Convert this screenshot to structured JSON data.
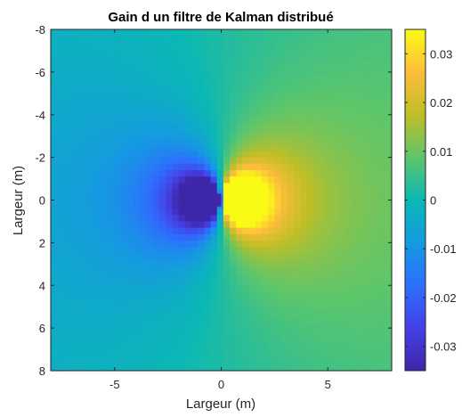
{
  "chart_data": {
    "type": "heatmap",
    "title": "Gain d un filtre de Kalman distribué",
    "xlabel": "Largeur (m)",
    "ylabel": "Largeur (m)",
    "xlim": [
      -8,
      8
    ],
    "ylim": [
      -8,
      8
    ],
    "y_direction": "reverse",
    "x_ticks": [
      -5,
      0,
      5
    ],
    "x_tick_labels": [
      "-5",
      "0",
      "5"
    ],
    "y_ticks": [
      -8,
      -6,
      -4,
      -2,
      0,
      2,
      4,
      6,
      8
    ],
    "y_tick_labels": [
      "-8",
      "-6",
      "-4",
      "-2",
      "0",
      "2",
      "4",
      "6",
      "8"
    ],
    "colormap": "parula",
    "clim": [
      -0.035,
      0.035
    ],
    "colorbar": {
      "ticks": [
        0.03,
        0.02,
        0.01,
        0,
        -0.01,
        -0.02,
        -0.03
      ],
      "tick_labels": [
        "0.03",
        "0.02",
        "0.01",
        "0",
        "-0.01",
        "-0.02",
        "-0.03"
      ],
      "placement": "right"
    },
    "field": {
      "description": "dipole centred at origin: negative lobe left of x=0, positive lobe right of x=0",
      "grid_step": 0.3,
      "peak_positive": 0.035,
      "peak_negative": -0.035,
      "peak_positive_location": [
        0.5,
        0
      ],
      "peak_negative_location": [
        -0.5,
        0
      ]
    }
  }
}
